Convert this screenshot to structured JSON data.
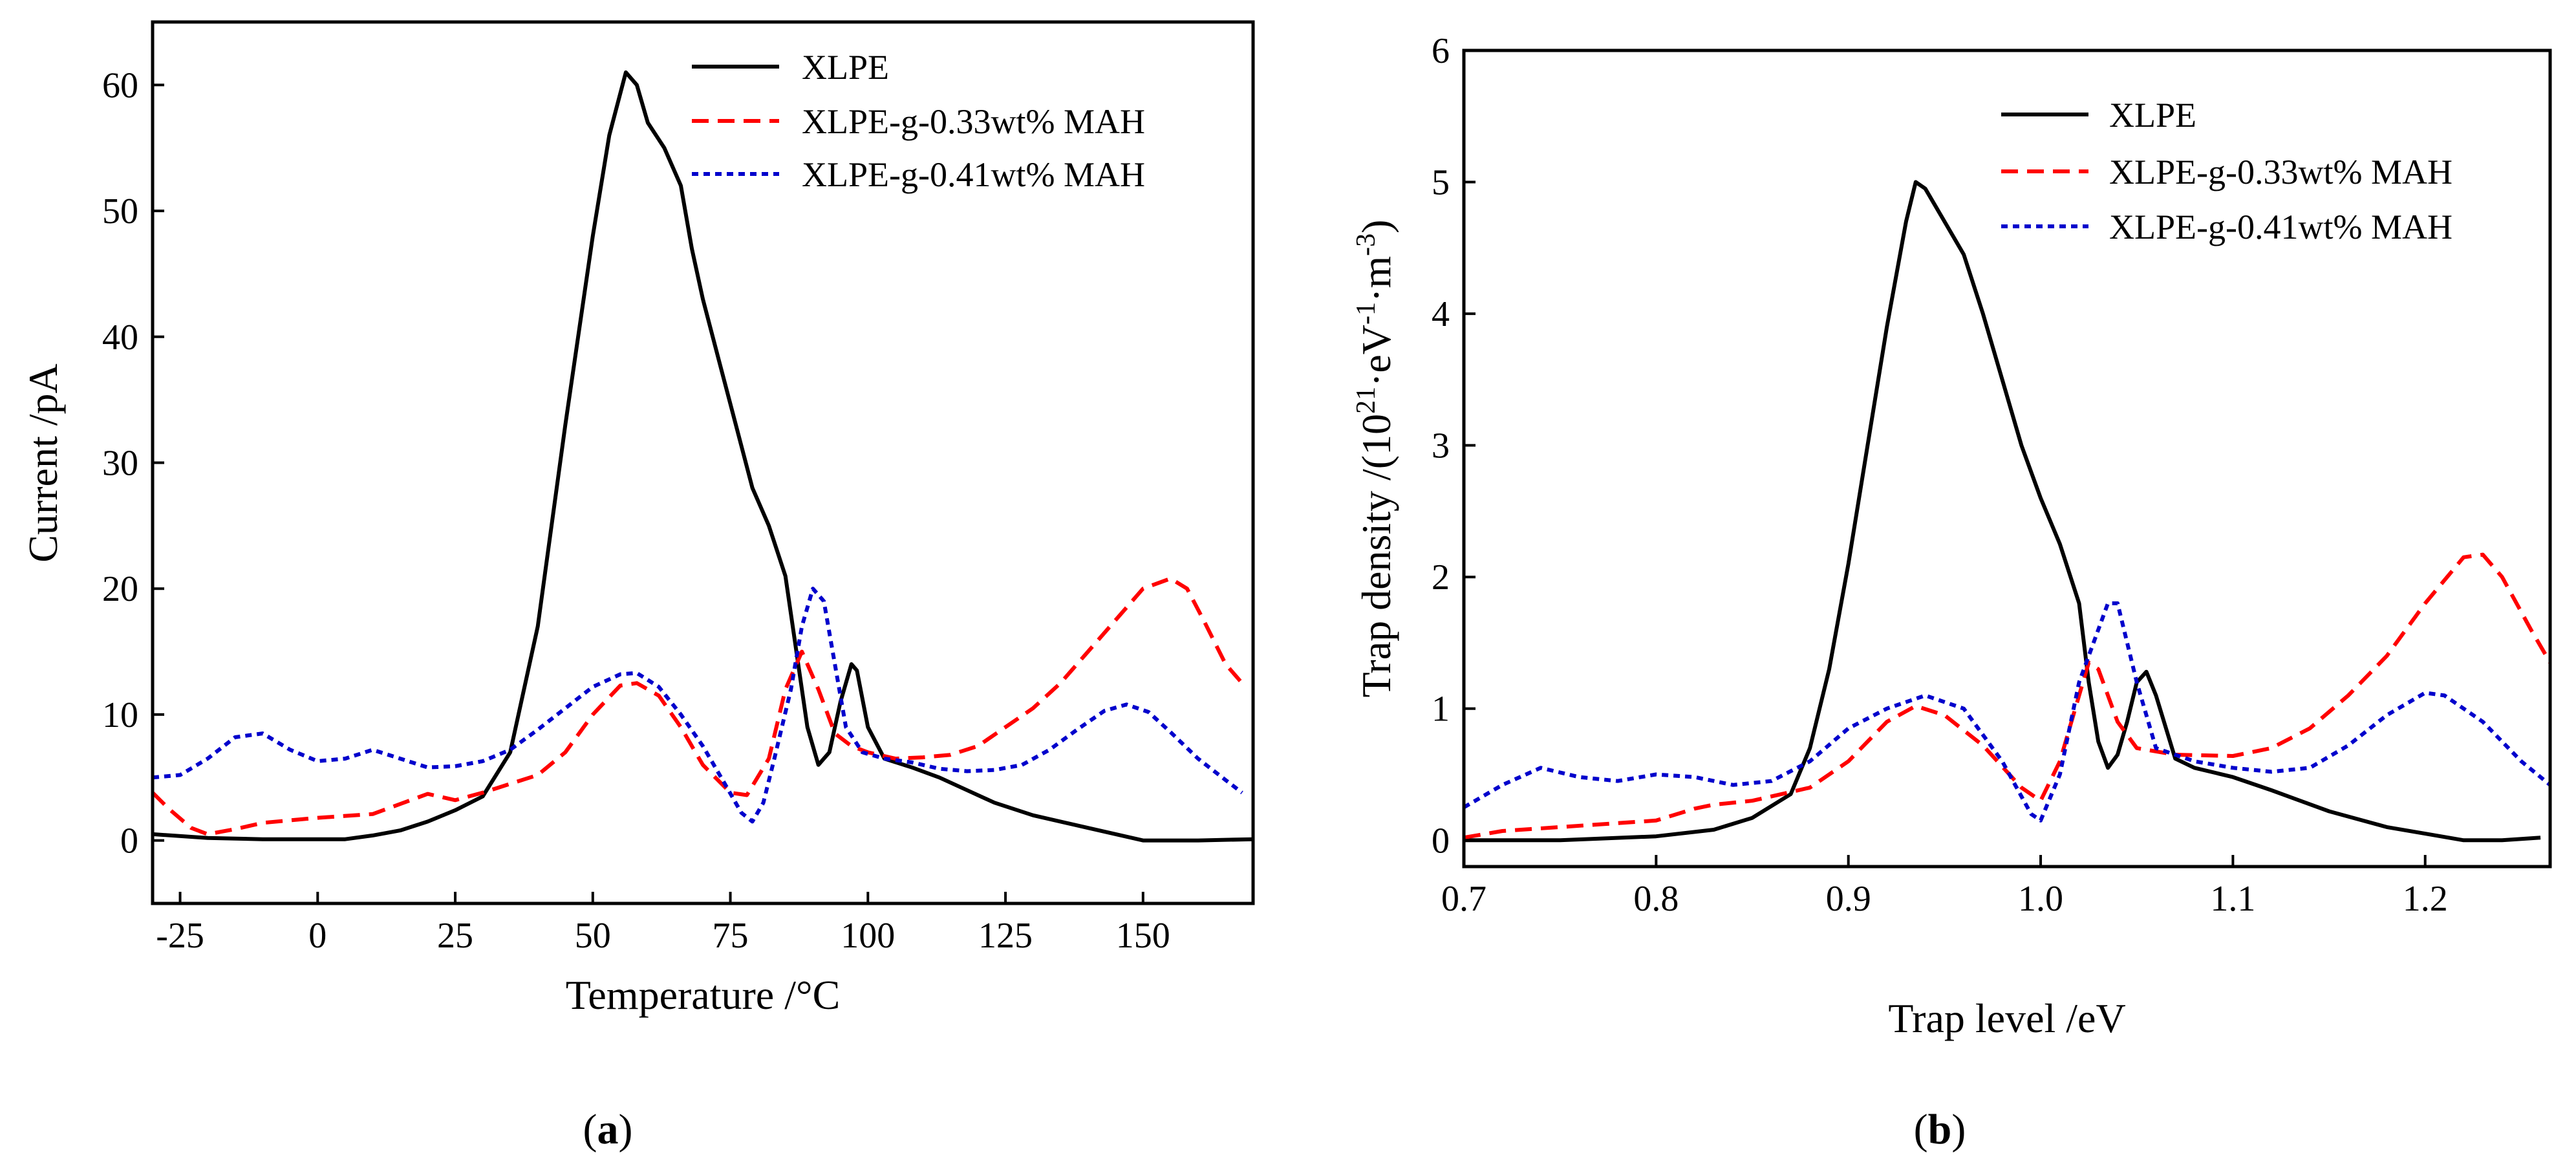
{
  "chart_data": [
    {
      "id": "a",
      "type": "line",
      "panel_label_pre": "(",
      "panel_label": "a",
      "panel_label_post": ")",
      "xlabel": "Temperature /°C",
      "ylabel": "Current /pA",
      "xlim": [
        -30,
        170
      ],
      "ylim": [
        -5,
        65
      ],
      "xticks": [
        -25,
        0,
        25,
        50,
        75,
        100,
        125,
        150
      ],
      "yticks": [
        0,
        10,
        20,
        30,
        40,
        50,
        60
      ],
      "legend_position": "top-right",
      "series": [
        {
          "name": "XLPE",
          "color": "#000000",
          "style": "solid",
          "points": [
            [
              -30,
              0.5
            ],
            [
              -20,
              0.2
            ],
            [
              -10,
              0.1
            ],
            [
              0,
              0.1
            ],
            [
              5,
              0.1
            ],
            [
              10,
              0.4
            ],
            [
              15,
              0.8
            ],
            [
              20,
              1.5
            ],
            [
              25,
              2.4
            ],
            [
              30,
              3.5
            ],
            [
              35,
              7
            ],
            [
              40,
              17
            ],
            [
              45,
              33
            ],
            [
              50,
              48
            ],
            [
              53,
              56
            ],
            [
              56,
              61
            ],
            [
              58,
              60
            ],
            [
              60,
              57
            ],
            [
              63,
              55
            ],
            [
              66,
              52
            ],
            [
              68,
              47
            ],
            [
              70,
              43
            ],
            [
              73,
              38
            ],
            [
              76,
              33
            ],
            [
              79,
              28
            ],
            [
              82,
              25
            ],
            [
              85,
              21
            ],
            [
              87,
              15
            ],
            [
              89,
              9
            ],
            [
              91,
              6
            ],
            [
              93,
              7
            ],
            [
              95,
              11
            ],
            [
              97,
              14
            ],
            [
              98,
              13.5
            ],
            [
              100,
              9
            ],
            [
              103,
              6.5
            ],
            [
              108,
              5.8
            ],
            [
              113,
              5
            ],
            [
              118,
              4
            ],
            [
              123,
              3
            ],
            [
              130,
              2
            ],
            [
              140,
              1
            ],
            [
              150,
              0
            ],
            [
              160,
              0
            ],
            [
              170,
              0.1
            ]
          ]
        },
        {
          "name": "XLPE-g-0.33wt% MAH",
          "color": "#ff0000",
          "style": "dashed",
          "points": [
            [
              -30,
              3.8
            ],
            [
              -27,
              2.5
            ],
            [
              -23,
              1
            ],
            [
              -20,
              0.5
            ],
            [
              -15,
              0.9
            ],
            [
              -10,
              1.4
            ],
            [
              0,
              1.8
            ],
            [
              10,
              2.1
            ],
            [
              15,
              2.9
            ],
            [
              20,
              3.7
            ],
            [
              25,
              3.2
            ],
            [
              30,
              3.8
            ],
            [
              35,
              4.5
            ],
            [
              40,
              5.2
            ],
            [
              45,
              7
            ],
            [
              50,
              10
            ],
            [
              55,
              12.3
            ],
            [
              58,
              12.5
            ],
            [
              62,
              11.5
            ],
            [
              66,
              9
            ],
            [
              70,
              6
            ],
            [
              75,
              3.8
            ],
            [
              78,
              3.6
            ],
            [
              82,
              6.5
            ],
            [
              85,
              12
            ],
            [
              88,
              15
            ],
            [
              91,
              12
            ],
            [
              94,
              8.5
            ],
            [
              97,
              7.5
            ],
            [
              100,
              7
            ],
            [
              105,
              6.5
            ],
            [
              110,
              6.6
            ],
            [
              115,
              6.8
            ],
            [
              120,
              7.5
            ],
            [
              125,
              9
            ],
            [
              130,
              10.5
            ],
            [
              135,
              12.5
            ],
            [
              140,
              15
            ],
            [
              145,
              17.5
            ],
            [
              150,
              20
            ],
            [
              155,
              20.8
            ],
            [
              158,
              20
            ],
            [
              161,
              17.5
            ],
            [
              165,
              14
            ],
            [
              168,
              12.5
            ]
          ]
        },
        {
          "name": "XLPE-g-0.41wt% MAH",
          "color": "#0000cc",
          "style": "dotted",
          "points": [
            [
              -30,
              5
            ],
            [
              -25,
              5.2
            ],
            [
              -20,
              6.5
            ],
            [
              -15,
              8.2
            ],
            [
              -10,
              8.5
            ],
            [
              -5,
              7.2
            ],
            [
              0,
              6.3
            ],
            [
              5,
              6.5
            ],
            [
              10,
              7.2
            ],
            [
              15,
              6.5
            ],
            [
              20,
              5.8
            ],
            [
              25,
              5.9
            ],
            [
              30,
              6.3
            ],
            [
              35,
              7.2
            ],
            [
              40,
              8.8
            ],
            [
              45,
              10.5
            ],
            [
              50,
              12.2
            ],
            [
              55,
              13.2
            ],
            [
              58,
              13.3
            ],
            [
              62,
              12.2
            ],
            [
              66,
              10
            ],
            [
              70,
              7.5
            ],
            [
              74,
              4.5
            ],
            [
              77,
              2.2
            ],
            [
              79,
              1.5
            ],
            [
              81,
              3
            ],
            [
              83,
              6.5
            ],
            [
              86,
              12
            ],
            [
              88,
              17
            ],
            [
              90,
              20
            ],
            [
              92,
              19
            ],
            [
              94,
              14
            ],
            [
              96,
              9
            ],
            [
              99,
              7
            ],
            [
              103,
              6.5
            ],
            [
              108,
              6.2
            ],
            [
              113,
              5.7
            ],
            [
              118,
              5.5
            ],
            [
              123,
              5.6
            ],
            [
              128,
              6
            ],
            [
              133,
              7.2
            ],
            [
              138,
              8.8
            ],
            [
              143,
              10.3
            ],
            [
              147,
              10.8
            ],
            [
              151,
              10.2
            ],
            [
              155,
              8.6
            ],
            [
              160,
              6.5
            ],
            [
              165,
              4.8
            ],
            [
              168,
              3.8
            ]
          ]
        }
      ]
    },
    {
      "id": "b",
      "type": "line",
      "panel_label_pre": "(",
      "panel_label": "b",
      "panel_label_post": ")",
      "xlabel": "Trap level /eV",
      "ylabel_pre": "Trap density /(10",
      "ylabel_sup1": "21",
      "ylabel_mid1": "·eV",
      "ylabel_sup2": "-1",
      "ylabel_mid2": "·m",
      "ylabel_sup3": "-3",
      "ylabel_post": ")",
      "xlim": [
        0.7,
        1.265
      ],
      "ylim": [
        -0.2,
        6
      ],
      "xticks": [
        "0.7",
        "0.8",
        "0.9",
        "1.0",
        "1.1",
        "1.2"
      ],
      "yticks": [
        0,
        1,
        2,
        3,
        4,
        5,
        6
      ],
      "legend_position": "top-right",
      "series": [
        {
          "name": "XLPE",
          "color": "#000000",
          "style": "solid",
          "points": [
            [
              0.7,
              0.0
            ],
            [
              0.75,
              0.0
            ],
            [
              0.8,
              0.03
            ],
            [
              0.83,
              0.08
            ],
            [
              0.85,
              0.17
            ],
            [
              0.87,
              0.35
            ],
            [
              0.88,
              0.7
            ],
            [
              0.89,
              1.3
            ],
            [
              0.9,
              2.1
            ],
            [
              0.91,
              3.0
            ],
            [
              0.92,
              3.9
            ],
            [
              0.93,
              4.7
            ],
            [
              0.935,
              5.0
            ],
            [
              0.94,
              4.95
            ],
            [
              0.95,
              4.7
            ],
            [
              0.96,
              4.45
            ],
            [
              0.97,
              4.0
            ],
            [
              0.98,
              3.5
            ],
            [
              0.99,
              3.0
            ],
            [
              1.0,
              2.6
            ],
            [
              1.01,
              2.25
            ],
            [
              1.02,
              1.8
            ],
            [
              1.025,
              1.2
            ],
            [
              1.03,
              0.75
            ],
            [
              1.035,
              0.55
            ],
            [
              1.04,
              0.65
            ],
            [
              1.045,
              0.9
            ],
            [
              1.05,
              1.2
            ],
            [
              1.055,
              1.28
            ],
            [
              1.06,
              1.1
            ],
            [
              1.07,
              0.62
            ],
            [
              1.08,
              0.55
            ],
            [
              1.1,
              0.48
            ],
            [
              1.12,
              0.38
            ],
            [
              1.15,
              0.22
            ],
            [
              1.18,
              0.1
            ],
            [
              1.2,
              0.05
            ],
            [
              1.22,
              0.0
            ],
            [
              1.24,
              0.0
            ],
            [
              1.26,
              0.02
            ]
          ]
        },
        {
          "name": "XLPE-g-0.33wt% MAH",
          "color": "#ff0000",
          "style": "dashed",
          "points": [
            [
              0.7,
              0.02
            ],
            [
              0.72,
              0.07
            ],
            [
              0.75,
              0.1
            ],
            [
              0.8,
              0.15
            ],
            [
              0.82,
              0.24
            ],
            [
              0.83,
              0.27
            ],
            [
              0.85,
              0.3
            ],
            [
              0.88,
              0.4
            ],
            [
              0.9,
              0.6
            ],
            [
              0.92,
              0.9
            ],
            [
              0.935,
              1.02
            ],
            [
              0.95,
              0.95
            ],
            [
              0.97,
              0.72
            ],
            [
              0.99,
              0.4
            ],
            [
              1.0,
              0.3
            ],
            [
              1.01,
              0.6
            ],
            [
              1.02,
              1.1
            ],
            [
              1.025,
              1.35
            ],
            [
              1.03,
              1.3
            ],
            [
              1.04,
              0.9
            ],
            [
              1.05,
              0.7
            ],
            [
              1.07,
              0.65
            ],
            [
              1.1,
              0.64
            ],
            [
              1.12,
              0.7
            ],
            [
              1.14,
              0.85
            ],
            [
              1.16,
              1.1
            ],
            [
              1.18,
              1.4
            ],
            [
              1.2,
              1.8
            ],
            [
              1.22,
              2.15
            ],
            [
              1.23,
              2.17
            ],
            [
              1.24,
              2.0
            ],
            [
              1.255,
              1.6
            ],
            [
              1.265,
              1.35
            ]
          ]
        },
        {
          "name": "XLPE-g-0.41wt% MAH",
          "color": "#0000cc",
          "style": "dotted",
          "points": [
            [
              0.7,
              0.25
            ],
            [
              0.72,
              0.42
            ],
            [
              0.74,
              0.55
            ],
            [
              0.76,
              0.48
            ],
            [
              0.78,
              0.45
            ],
            [
              0.8,
              0.5
            ],
            [
              0.82,
              0.48
            ],
            [
              0.84,
              0.42
            ],
            [
              0.86,
              0.45
            ],
            [
              0.88,
              0.6
            ],
            [
              0.9,
              0.85
            ],
            [
              0.92,
              1.0
            ],
            [
              0.94,
              1.1
            ],
            [
              0.96,
              1.0
            ],
            [
              0.98,
              0.6
            ],
            [
              0.995,
              0.2
            ],
            [
              1.0,
              0.15
            ],
            [
              1.01,
              0.5
            ],
            [
              1.02,
              1.2
            ],
            [
              1.035,
              1.8
            ],
            [
              1.04,
              1.8
            ],
            [
              1.05,
              1.2
            ],
            [
              1.06,
              0.7
            ],
            [
              1.08,
              0.6
            ],
            [
              1.1,
              0.55
            ],
            [
              1.12,
              0.52
            ],
            [
              1.14,
              0.55
            ],
            [
              1.16,
              0.72
            ],
            [
              1.18,
              0.95
            ],
            [
              1.2,
              1.12
            ],
            [
              1.21,
              1.1
            ],
            [
              1.23,
              0.9
            ],
            [
              1.25,
              0.6
            ],
            [
              1.265,
              0.42
            ]
          ]
        }
      ]
    }
  ]
}
